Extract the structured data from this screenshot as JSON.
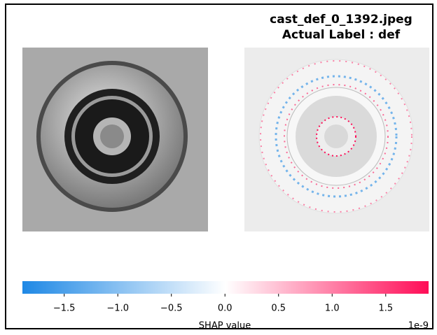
{
  "title": "cast_def_0_1392.jpeg",
  "subtitle": "Actual Label : def",
  "colorbar": {
    "label": "SHAP value",
    "offset_label": "1e-9",
    "lim": [
      -1.89,
      1.9
    ],
    "colors": [
      "#1e88e5",
      "#ffffff",
      "#ff0d57"
    ],
    "ticks": [
      {
        "value": -1.5,
        "label": "−1.5"
      },
      {
        "value": -1.0,
        "label": "−1.0"
      },
      {
        "value": -0.5,
        "label": "−0.5"
      },
      {
        "value": 0,
        "label": "0.0"
      },
      0.5,
      {
        "value": 1.0,
        "label": "1.0"
      },
      1.5
    ]
  }
}
